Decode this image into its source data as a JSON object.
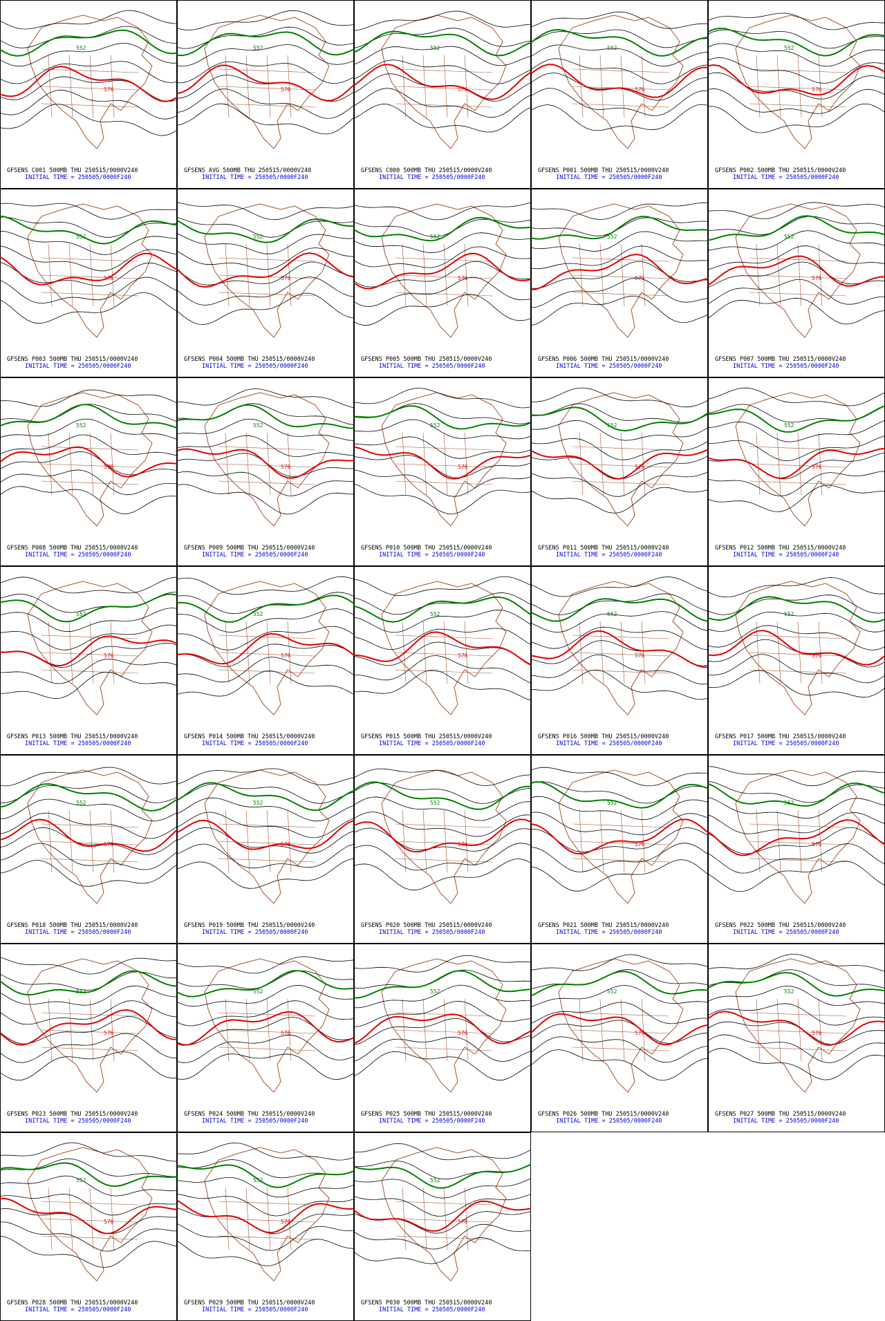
{
  "panels": [
    {
      "title": "GFSENS C001 500MB THU 250515/0000V240",
      "init": "INITIAL TIME = 250505/0000F240",
      "contour_labels": [
        "552",
        "576"
      ]
    },
    {
      "title": "GFSENS AVG 500MB THU 250515/0000V240",
      "init": "INITIAL TIME = 250505/0000F240",
      "contour_labels": [
        "552",
        "576"
      ]
    },
    {
      "title": "GFSENS C000 500MB THU 250515/0000V240",
      "init": "INITIAL TIME = 250505/0000F240",
      "contour_labels": [
        "552",
        "576"
      ]
    },
    {
      "title": "GFSENS P001 500MB THU 250515/0000V240",
      "init": "INITIAL TIME = 250505/0000F240",
      "contour_labels": [
        "552",
        "576"
      ]
    },
    {
      "title": "GFSENS P002 500MB THU 250515/0000V240",
      "init": "INITIAL TIME = 250505/0000F240",
      "contour_labels": [
        "552",
        "576"
      ]
    },
    {
      "title": "GFSENS P003 500MB THU 250515/0000V240",
      "init": "INITIAL TIME = 250505/0000F240",
      "contour_labels": [
        "552",
        "576"
      ]
    },
    {
      "title": "GFSENS P004 500MB THU 250515/0000V240",
      "init": "INITIAL TIME = 250505/0000F240",
      "contour_labels": [
        "552",
        "576"
      ]
    },
    {
      "title": "GFSENS P005 500MB THU 250515/0000V240",
      "init": "INITIAL TIME = 250505/0000F240",
      "contour_labels": [
        "552",
        "576"
      ]
    },
    {
      "title": "GFSENS P006 500MB THU 250515/0000V240",
      "init": "INITIAL TIME = 250505/0000F240",
      "contour_labels": [
        "552",
        "576"
      ]
    },
    {
      "title": "GFSENS P007 500MB THU 250515/0000V240",
      "init": "INITIAL TIME = 250505/0000F240",
      "contour_labels": [
        "552",
        "576"
      ]
    },
    {
      "title": "GFSENS P008 500MB THU 250515/0000V240",
      "init": "INITIAL TIME = 250505/0000F240",
      "contour_labels": [
        "552",
        "576"
      ]
    },
    {
      "title": "GFSENS P009 500MB THU 250515/0000V240",
      "init": "INITIAL TIME = 250505/0000F240",
      "contour_labels": [
        "552",
        "576"
      ]
    },
    {
      "title": "GFSENS P010 500MB THU 250515/0000V240",
      "init": "INITIAL TIME = 250505/0000F240",
      "contour_labels": [
        "552",
        "576"
      ]
    },
    {
      "title": "GFSENS P011 500MB THU 250515/0000V240",
      "init": "INITIAL TIME = 250505/0000F240",
      "contour_labels": [
        "552",
        "576"
      ]
    },
    {
      "title": "GFSENS P012 500MB THU 250515/0000V240",
      "init": "INITIAL TIME = 250505/0000F240",
      "contour_labels": [
        "552",
        "576"
      ]
    },
    {
      "title": "GFSENS P013 500MB THU 250515/0000V240",
      "init": "INITIAL TIME = 250505/0000F240",
      "contour_labels": [
        "552",
        "576"
      ]
    },
    {
      "title": "GFSENS P014 500MB THU 250515/0000V240",
      "init": "INITIAL TIME = 250505/0000F240",
      "contour_labels": [
        "552",
        "576"
      ]
    },
    {
      "title": "GFSENS P015 500MB THU 250515/0000V240",
      "init": "INITIAL TIME = 250505/0000F240",
      "contour_labels": [
        "552",
        "576"
      ]
    },
    {
      "title": "GFSENS P016 500MB THU 250515/0000V240",
      "init": "INITIAL TIME = 250505/0000F240",
      "contour_labels": [
        "552",
        "576"
      ]
    },
    {
      "title": "GFSENS P017 500MB THU 250515/0000V240",
      "init": "INITIAL TIME = 250505/0000F240",
      "contour_labels": [
        "552",
        "576"
      ]
    },
    {
      "title": "GFSENS P018 500MB THU 250515/0000V240",
      "init": "INITIAL TIME = 250505/0000F240",
      "contour_labels": [
        "552",
        "576"
      ]
    },
    {
      "title": "GFSENS P019 500MB THU 250515/0000V240",
      "init": "INITIAL TIME = 250505/0000F240",
      "contour_labels": [
        "552",
        "576"
      ]
    },
    {
      "title": "GFSENS P020 500MB THU 250515/0000V240",
      "init": "INITIAL TIME = 250505/0000F240",
      "contour_labels": [
        "552",
        "576"
      ]
    },
    {
      "title": "GFSENS P021 500MB THU 250515/0000V240",
      "init": "INITIAL TIME = 250505/0000F240",
      "contour_labels": [
        "552",
        "576"
      ]
    },
    {
      "title": "GFSENS P022 500MB THU 250515/0000V240",
      "init": "INITIAL TIME = 250505/0000F240",
      "contour_labels": [
        "552",
        "576"
      ]
    },
    {
      "title": "GFSENS P023 500MB THU 250515/0000V240",
      "init": "INITIAL TIME = 250505/0000F240",
      "contour_labels": [
        "552",
        "576"
      ]
    },
    {
      "title": "GFSENS P024 500MB THU 250515/0000V240",
      "init": "INITIAL TIME = 250505/0000F240",
      "contour_labels": [
        "552",
        "576"
      ]
    },
    {
      "title": "GFSENS P025 500MB THU 250515/0000V240",
      "init": "INITIAL TIME = 250505/0000F240",
      "contour_labels": [
        "552",
        "576"
      ]
    },
    {
      "title": "GFSENS P026 500MB THU 250515/0000V240",
      "init": "INITIAL TIME = 250505/0000F240",
      "contour_labels": [
        "552",
        "576"
      ]
    },
    {
      "title": "GFSENS P027 500MB THU 250515/0000V240",
      "init": "INITIAL TIME = 250505/0000F240",
      "contour_labels": [
        "552",
        "576"
      ]
    },
    {
      "title": "GFSENS P028 500MB THU 250515/0000V240",
      "init": "INITIAL TIME = 250505/0000F240",
      "contour_labels": [
        "552",
        "576"
      ]
    },
    {
      "title": "GFSENS P029 500MB THU 250515/0000V240",
      "init": "INITIAL TIME = 250505/0000F240",
      "contour_labels": [
        "552",
        "576"
      ]
    },
    {
      "title": "GFSENS P030 500MB THU 250515/0000V240",
      "init": "INITIAL TIME = 250505/0000F240",
      "contour_labels": [
        "552",
        "576"
      ]
    }
  ]
}
